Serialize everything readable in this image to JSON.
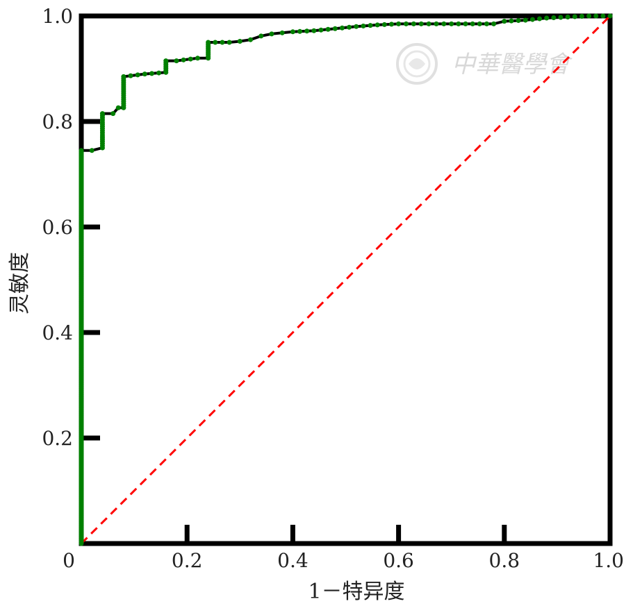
{
  "chart_data": {
    "type": "line",
    "xlabel": "1－特异度",
    "ylabel": "灵敏度",
    "xlim": [
      0,
      1
    ],
    "ylim": [
      0,
      1
    ],
    "x_ticks": [
      "0",
      "0.2",
      "0.4",
      "0.6",
      "0.8",
      "1.0"
    ],
    "y_ticks": [
      "0.2",
      "0.4",
      "0.6",
      "0.8",
      "1.0"
    ],
    "grid": false,
    "series": [
      {
        "style": "step line with point markers",
        "color": "#008000",
        "line_color": "#000000",
        "points": [
          [
            0.0,
            0.0
          ],
          [
            0.0,
            0.745
          ],
          [
            0.02,
            0.745
          ],
          [
            0.04,
            0.75
          ],
          [
            0.04,
            0.815
          ],
          [
            0.06,
            0.815
          ],
          [
            0.07,
            0.826
          ],
          [
            0.08,
            0.826
          ],
          [
            0.08,
            0.885
          ],
          [
            0.12,
            0.89
          ],
          [
            0.16,
            0.893
          ],
          [
            0.16,
            0.915
          ],
          [
            0.18,
            0.915
          ],
          [
            0.22,
            0.92
          ],
          [
            0.24,
            0.92
          ],
          [
            0.24,
            0.95
          ],
          [
            0.28,
            0.95
          ],
          [
            0.3,
            0.952
          ],
          [
            0.32,
            0.955
          ],
          [
            0.34,
            0.962
          ],
          [
            0.36,
            0.966
          ],
          [
            0.38,
            0.968
          ],
          [
            0.4,
            0.97
          ],
          [
            0.44,
            0.972
          ],
          [
            0.48,
            0.976
          ],
          [
            0.52,
            0.98
          ],
          [
            0.56,
            0.983
          ],
          [
            0.6,
            0.985
          ],
          [
            0.7,
            0.985
          ],
          [
            0.78,
            0.985
          ],
          [
            0.8,
            0.99
          ],
          [
            0.84,
            0.992
          ],
          [
            0.88,
            0.996
          ],
          [
            0.92,
            0.998
          ],
          [
            0.96,
            1.0
          ],
          [
            1.0,
            1.0
          ]
        ]
      },
      {
        "style": "dashed diagonal reference",
        "color": "#ff0000",
        "points": [
          [
            0,
            0
          ],
          [
            1,
            1
          ]
        ]
      }
    ]
  },
  "watermark": {
    "text": "中華醫學會",
    "icon": "chinese-medical-association-seal-icon"
  }
}
